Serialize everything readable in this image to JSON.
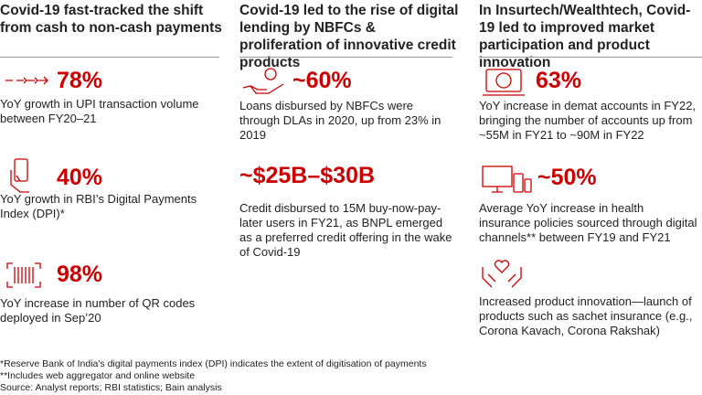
{
  "columns": [
    {
      "heading": "Covid-19 fast-tracked the shift from cash to non-cash payments",
      "stats": [
        {
          "value": "78%",
          "text": "YoY growth in UPI transaction volume between FY20–21"
        },
        {
          "value": "40%",
          "text": "YoY growth in RBI’s Digital Payments Index (DPI)*"
        },
        {
          "value": "98%",
          "text": "YoY increase in number of QR codes deployed in Sep’20"
        }
      ]
    },
    {
      "heading": "Covid-19 led to the rise of digital lending by NBFCs & proliferation of innovative credit products",
      "stats": [
        {
          "value": "~60%",
          "text": "Loans disbursed by NBFCs were through DLAs in 2020, up from 23% in 2019"
        },
        {
          "value": "~$25B–$30B",
          "text": "Credit disbursed to 15M buy-now-pay-later users in FY21, as BNPL emerged as a preferred credit offering in the wake of Covid-19"
        }
      ]
    },
    {
      "heading": "In Insurtech/Wealthtech, Covid-19 led to improved market participation and product innovation",
      "stats": [
        {
          "value": "63%",
          "text": "YoY increase in demat accounts in FY22, bringing the number of accounts up from ~55M in FY21 to ~90M in FY22"
        },
        {
          "value": "~50%",
          "text": "Average YoY increase in health insurance policies sourced through digital channels** between FY19 and FY21"
        },
        {
          "text": "Increased product innovation—launch of products such as sachet insurance (e.g., Corona Kavach, Corona Rakshak)"
        }
      ]
    }
  ],
  "footnotes": [
    "*Reserve Bank of India's digital payments index (DPI) indicates the extent of digitisation of payments",
    "**Includes web aggregator and online website",
    "Source: Analyst reports; RBI statistics; Bain analysis"
  ]
}
